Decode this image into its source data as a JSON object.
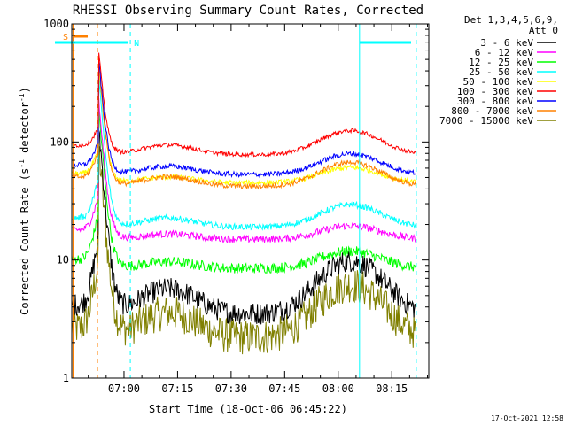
{
  "chart_data": {
    "type": "line",
    "title": "RHESSI Observing Summary Count Rates, Corrected",
    "xlabel": "Start Time (18-Oct-06 06:45:22)",
    "ylabel_main": "Corrected Count Rate (s",
    "ylabel_sup1": "-1",
    "ylabel_mid": " detector",
    "ylabel_sup2": "-1",
    "ylabel_end": ")",
    "yscale": "log",
    "ylim": [
      1,
      1000
    ],
    "xlim_minutes": [
      0,
      100
    ],
    "x_ticks": [
      "07:00",
      "07:15",
      "07:30",
      "07:45",
      "08:00",
      "08:15"
    ],
    "y_ticks": [
      "1",
      "10",
      "100",
      "1000"
    ],
    "legend_header": [
      "Det 1,3,4,5,6,9,",
      "Att 0"
    ],
    "legend_position": "right",
    "flag_labels": {
      "saa": "S",
      "night": "N"
    },
    "timestamp": "17-Oct-2021 12:58",
    "series": [
      {
        "name": "3 - 6 keV",
        "color": "#000000",
        "base": 3.5,
        "spike": 45,
        "bump": 2.8,
        "noise": 0.22
      },
      {
        "name": "6 - 12 keV",
        "color": "#ff00ff",
        "base": 15,
        "spike": 70,
        "bump": 1.3,
        "noise": 0.07
      },
      {
        "name": "12 - 25 keV",
        "color": "#00ff00",
        "base": 8.5,
        "spike": 60,
        "bump": 1.4,
        "noise": 0.1
      },
      {
        "name": "25 - 50 keV",
        "color": "#00ffff",
        "base": 19,
        "spike": 110,
        "bump": 1.55,
        "noise": 0.06
      },
      {
        "name": "50 - 100 keV",
        "color": "#ffff00",
        "base": 45,
        "spike": 130,
        "bump": 1.35,
        "noise": 0.05
      },
      {
        "name": "100 - 300 keV",
        "color": "#ff0000",
        "base": 78,
        "spike": 170,
        "bump": 1.6,
        "noise": 0.04
      },
      {
        "name": "300 - 800 keV",
        "color": "#0000ff",
        "base": 53,
        "spike": 150,
        "bump": 1.5,
        "noise": 0.05
      },
      {
        "name": "800 - 7000 keV",
        "color": "#ff8000",
        "base": 42,
        "spike": 140,
        "bump": 1.6,
        "noise": 0.05
      },
      {
        "name": "7000 - 15000 keV",
        "color": "#808000",
        "base": 2.2,
        "spike": 30,
        "bump": 2.8,
        "noise": 0.35
      }
    ]
  }
}
